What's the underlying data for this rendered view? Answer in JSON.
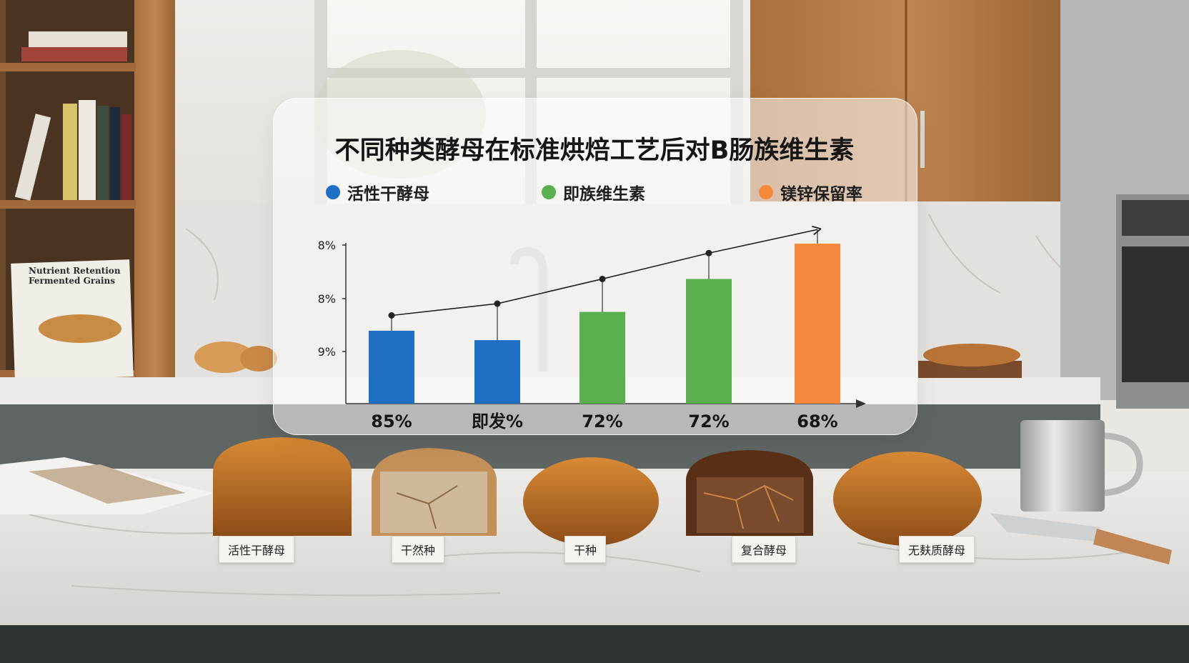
{
  "chart_data": {
    "type": "bar",
    "title": "不同种类酵母在标准烘焙工艺后对B肠族维生素",
    "legend": [
      {
        "label": "活性干酵母",
        "color": "#1f6fc5"
      },
      {
        "label": "即族维生素",
        "color": "#5aaf4f"
      },
      {
        "label": "镁锌保留率",
        "color": "#f5883b"
      }
    ],
    "y_tick_labels": [
      "8%",
      "8%",
      "9%"
    ],
    "categories": [
      "85%",
      "即发%",
      "72%",
      "72%",
      "68%"
    ],
    "values": [
      62,
      54,
      78,
      106,
      136
    ],
    "line_values": [
      75,
      85,
      106,
      128,
      148
    ],
    "bar_colors": [
      "#1f6fc5",
      "#1f6fc5",
      "#5aaf4f",
      "#5aaf4f",
      "#f5883b"
    ],
    "ylim": [
      0,
      150
    ],
    "grid": false,
    "legend_position": "top"
  },
  "bread_labels": [
    "活性干酵母",
    "干然种",
    "干种",
    "复合酵母",
    "无麸质酵母"
  ],
  "book": {
    "cover_text": "Nutrient Retention Fermented Grains"
  }
}
